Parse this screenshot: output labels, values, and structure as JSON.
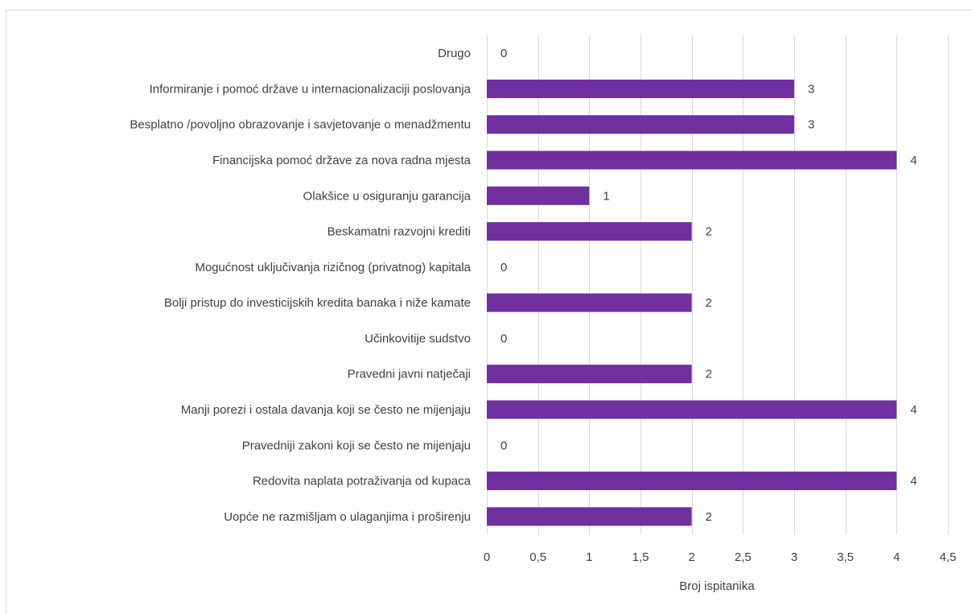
{
  "chart_data": {
    "type": "bar",
    "orientation": "horizontal",
    "categories": [
      "Drugo",
      "Informiranje i pomoć države u internacionalizaciji poslovanja",
      "Besplatno /povoljno obrazovanje i savjetovanje o menadžmentu",
      "Financijska pomoć države za nova radna mjesta",
      "Olakšice u osiguranju garancija",
      "Beskamatni razvojni krediti",
      "Mogućnost uključivanja rizičnog (privatnog) kapitala",
      "Bolji pristup do investicijskih kredita banaka i niže kamate",
      "Učinkovitije sudstvo",
      "Pravedni javni natječaji",
      "Manji porezi i ostala davanja koji se često ne mijenjaju",
      "Pravedniji zakoni koji se često ne mijenjaju",
      "Redovita naplata potraživanja od kupaca",
      "Uopće ne razmišljam o ulaganjima i proširenju"
    ],
    "values": [
      0,
      3,
      3,
      4,
      1,
      2,
      0,
      2,
      0,
      2,
      4,
      0,
      4,
      2
    ],
    "data_labels": [
      "0",
      "3",
      "3",
      "4",
      "1",
      "2",
      "0",
      "2",
      "0",
      "2",
      "4",
      "0",
      "4",
      "2"
    ],
    "xlabel": "Broj ispitanika",
    "ylabel": "",
    "title": "",
    "xlim": [
      0,
      4.5
    ],
    "xticks": [
      0,
      0.5,
      1,
      1.5,
      2,
      2.5,
      3,
      3.5,
      4,
      4.5
    ],
    "xtick_labels": [
      "0",
      "0,5",
      "1",
      "1,5",
      "2",
      "2,5",
      "3",
      "3,5",
      "4",
      "4,5"
    ],
    "grid": "vertical",
    "legend": "none",
    "colors": {
      "bar": "#7030a0",
      "gridline": "#d9d9d9",
      "text": "#404040"
    }
  }
}
